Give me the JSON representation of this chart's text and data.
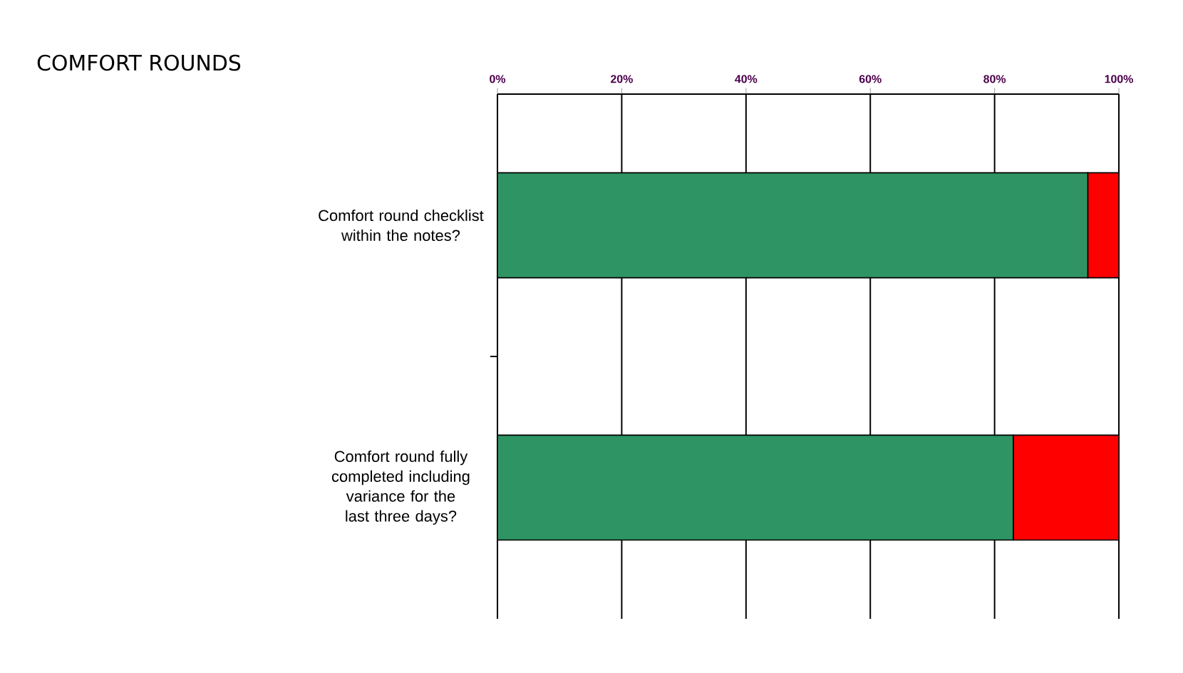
{
  "chart_data": {
    "type": "bar",
    "title": "COMFORT ROUNDS",
    "orientation": "horizontal",
    "stacked": true,
    "categories": [
      "Comfort round checklist within the notes?",
      "Comfort round fully completed including variance for the last three days?"
    ],
    "series": [
      {
        "color": "#2e9463",
        "values": [
          95,
          83
        ]
      },
      {
        "color": "#ff0000",
        "values": [
          5,
          17
        ]
      }
    ],
    "xlim": [
      0,
      100
    ],
    "xticks": [
      {
        "value": 0,
        "label": "0%"
      },
      {
        "value": 20,
        "label": "20%"
      },
      {
        "value": 40,
        "label": "40%"
      },
      {
        "value": 60,
        "label": "60%"
      },
      {
        "value": 80,
        "label": "80%"
      },
      {
        "value": 100,
        "label": "100%"
      }
    ],
    "grid": "x"
  }
}
